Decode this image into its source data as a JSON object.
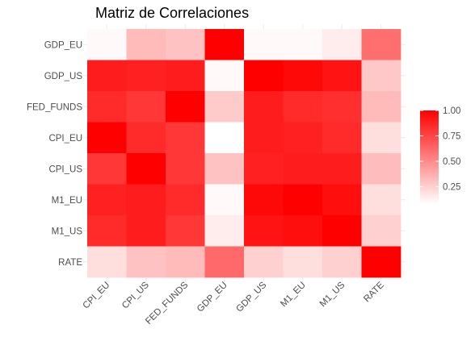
{
  "chart_data": {
    "type": "heatmap",
    "title": "Matriz de Correlaciones",
    "xlabel": "",
    "ylabel": "",
    "x_categories": [
      "CPI_EU",
      "CPI_US",
      "FED_FUNDS",
      "GDP_EU",
      "GDP_US",
      "M1_EU",
      "M1_US",
      "RATE"
    ],
    "y_categories": [
      "GDP_EU",
      "GDP_US",
      "FED_FUNDS",
      "CPI_EU",
      "CPI_US",
      "M1_EU",
      "M1_US",
      "RATE"
    ],
    "values": [
      [
        0.1,
        0.33,
        0.3,
        1.0,
        0.1,
        0.1,
        0.15,
        0.6
      ],
      [
        0.9,
        0.88,
        0.9,
        0.1,
        1.0,
        0.97,
        0.93,
        0.28
      ],
      [
        0.85,
        0.8,
        1.0,
        0.27,
        0.9,
        0.85,
        0.83,
        0.33
      ],
      [
        1.0,
        0.85,
        0.8,
        0.08,
        0.9,
        0.88,
        0.85,
        0.2
      ],
      [
        0.8,
        1.0,
        0.8,
        0.3,
        0.88,
        0.9,
        0.9,
        0.32
      ],
      [
        0.88,
        0.9,
        0.85,
        0.1,
        0.97,
        1.0,
        0.95,
        0.2
      ],
      [
        0.85,
        0.9,
        0.8,
        0.15,
        0.93,
        0.95,
        1.0,
        0.25
      ],
      [
        0.2,
        0.3,
        0.33,
        0.62,
        0.25,
        0.2,
        0.25,
        1.0
      ]
    ],
    "color_scale": {
      "low_color": "#ffffff",
      "high_color": "#ff0000",
      "domain": [
        0.08,
        1.0
      ],
      "legend_ticks": [
        "1.00",
        "0.75",
        "0.50",
        "0.25"
      ],
      "legend_tick_values": [
        1.0,
        0.75,
        0.5,
        0.25
      ]
    },
    "grid": true,
    "legend_position": "right"
  }
}
